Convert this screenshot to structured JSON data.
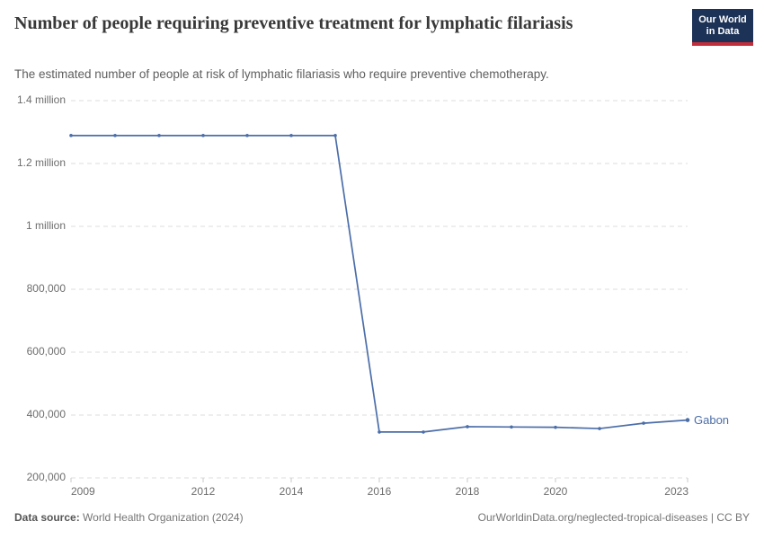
{
  "header": {
    "title": "Number of people requiring preventive treatment for lymphatic filariasis",
    "subtitle": "The estimated number of people at risk of lymphatic filariasis who require preventive chemotherapy."
  },
  "logo": {
    "line1": "Our World",
    "line2": "in Data",
    "bg_color": "#1c3256",
    "accent_color": "#c32d39"
  },
  "colors": {
    "series_line": "#4c6ea8",
    "grid": "#dddddd",
    "axis_tick": "#c9c9c9",
    "axis_text": "#6d6d6d"
  },
  "chart_data": {
    "type": "line",
    "title": "Number of people requiring preventive treatment for lymphatic filariasis",
    "subtitle": "The estimated number of people at risk of lymphatic filariasis who require preventive chemotherapy.",
    "x": [
      2009,
      2010,
      2011,
      2012,
      2013,
      2014,
      2015,
      2016,
      2017,
      2018,
      2019,
      2020,
      2021,
      2022,
      2023
    ],
    "series": [
      {
        "name": "Gabon",
        "color": "#4c6ea8",
        "values": [
          1289000,
          1289000,
          1289000,
          1289000,
          1289000,
          1289000,
          1289000,
          346000,
          346000,
          363000,
          362000,
          361000,
          357000,
          374000,
          384000
        ]
      }
    ],
    "xlim": [
      2009,
      2023
    ],
    "ylim": [
      200000,
      1400000
    ],
    "x_ticks": [
      2009,
      2012,
      2014,
      2016,
      2018,
      2020,
      2023
    ],
    "y_ticks": [
      {
        "value": 200000,
        "label": "200,000"
      },
      {
        "value": 400000,
        "label": "400,000"
      },
      {
        "value": 600000,
        "label": "600,000"
      },
      {
        "value": 800000,
        "label": "800,000"
      },
      {
        "value": 1000000,
        "label": "1 million"
      },
      {
        "value": 1200000,
        "label": "1.2 million"
      },
      {
        "value": 1400000,
        "label": "1.4 million"
      }
    ],
    "grid": "horizontal-dashed",
    "legend_position": "end-of-line",
    "series_end_label": "Gabon"
  },
  "footer": {
    "datasource_label": "Data source:",
    "datasource_value": " World Health Organization (2024)",
    "right_text": "OurWorldinData.org/neglected-tropical-diseases | CC BY"
  }
}
